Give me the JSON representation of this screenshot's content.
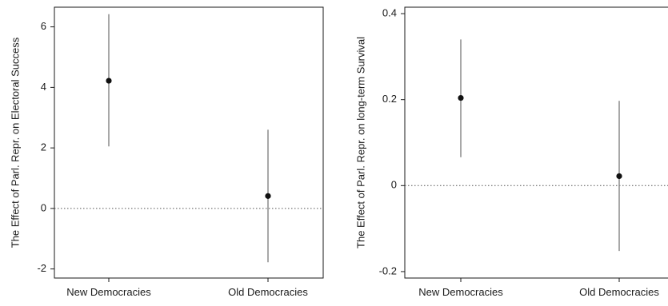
{
  "chart_data": [
    {
      "type": "scatter",
      "title": "",
      "xlabel": "",
      "ylabel": "The Effect of Parl. Repr. on Electoral Success",
      "categories": [
        "New Democracies",
        "Old Democracies"
      ],
      "series": [
        {
          "estimates": [
            4.22,
            0.41
          ],
          "ci_lower": [
            2.05,
            -1.78
          ],
          "ci_upper": [
            6.42,
            2.6
          ]
        }
      ],
      "yticks": [
        -2,
        0,
        2,
        4,
        6
      ],
      "ytick_labels": [
        "-2",
        "0",
        "2",
        "4",
        "6"
      ],
      "ylim": [
        -2.3,
        6.65
      ],
      "reference_line": 0,
      "grid": false
    },
    {
      "type": "scatter",
      "title": "",
      "xlabel": "",
      "ylabel": "The Effect of Parl. Repr. on long-term Survival",
      "categories": [
        "New Democracies",
        "Old Democracies"
      ],
      "series": [
        {
          "estimates": [
            0.204,
            0.022
          ],
          "ci_lower": [
            0.066,
            -0.152
          ],
          "ci_upper": [
            0.34,
            0.197
          ]
        }
      ],
      "yticks": [
        -0.2,
        0,
        0.2,
        0.4
      ],
      "ytick_labels": [
        "-0.2",
        "0",
        "0.2",
        "0.4"
      ],
      "ylim": [
        -0.215,
        0.415
      ],
      "reference_line": 0,
      "grid": false
    }
  ]
}
